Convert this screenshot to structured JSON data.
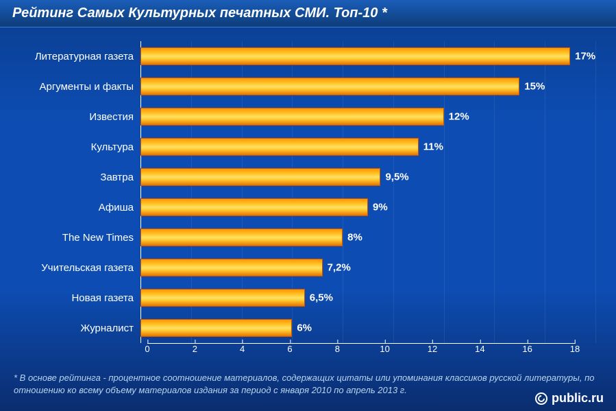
{
  "title": "Рейтинг Самых Культурных печатных СМИ. Топ-10 *",
  "chart": {
    "type": "bar-horizontal",
    "categories": [
      "Литературная газета",
      "Аргументы и факты",
      "Известия",
      "Культура",
      "Завтра",
      "Афиша",
      "The New Times",
      "Учительская газета",
      "Новая газета",
      "Журналист"
    ],
    "values": [
      17,
      15,
      12,
      11,
      9.5,
      9,
      8,
      7.2,
      6.5,
      6
    ],
    "value_labels": [
      "17%",
      "15%",
      "12%",
      "11%",
      "9,5%",
      "9%",
      "8%",
      "7,2%",
      "6,5%",
      "6%"
    ],
    "xlim": [
      0,
      18
    ],
    "xtick_step": 2,
    "xticks": [
      0,
      2,
      4,
      6,
      8,
      10,
      12,
      14,
      16,
      18
    ],
    "bar_gradient": [
      "#ff9500",
      "#ffcc33",
      "#ffe066",
      "#ffcc33",
      "#e67300"
    ],
    "bar_border": "#cc5500",
    "label_color": "#ffffff",
    "label_fontsize": 15,
    "value_color": "#ffffff",
    "value_fontsize": 15,
    "tick_color": "#ffffff",
    "tick_fontsize": 13,
    "background_gradient": [
      "#0a3d8f",
      "#0d4db3",
      "#0a2d6f"
    ],
    "grid_color": "rgba(255,255,255,0.08)"
  },
  "footnote": "* В основе рейтинга - процентное соотношение материалов, содержащих цитаты или упоминания классиков русской литературы, по отношению ко всему объему материалов издания за период с января 2010 по апрель 2013 г.",
  "footer": {
    "brand": "public.ru"
  }
}
